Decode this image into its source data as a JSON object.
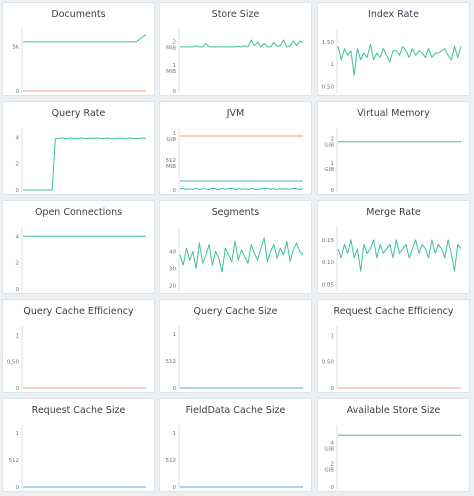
{
  "colors": {
    "background": "#edf0f2",
    "card": "#ffffff",
    "border": "#dde3e6",
    "primary_series": "#3fbf9f",
    "secondary_series": "#e8a07e",
    "tertiary_series": "#5aaed0",
    "axis": "#c9d3d8",
    "label": "#6d7478"
  },
  "panels": [
    {
      "title": "Documents",
      "chart_data": {
        "type": "line",
        "y_ticks": [
          "5k",
          "0"
        ],
        "series": [
          {
            "color": "primary_series",
            "values": [
              5.5,
              5.5,
              5.5,
              5.5,
              5.5,
              5.5,
              5.5,
              5.5,
              5.5,
              5.5,
              5.5,
              5.5,
              5.5,
              5.5,
              5.5,
              5.5,
              5.5,
              5.5,
              5.5,
              5.5,
              5.5,
              5.5,
              5.5,
              5.5,
              5.5,
              5.5,
              5.5,
              5.5,
              5.5,
              5.5,
              5.5,
              5.5,
              5.5,
              5.5,
              5.5,
              5.5,
              5.8,
              6.1,
              6.3
            ]
          },
          {
            "color": "secondary_series",
            "values": [
              0,
              0,
              0,
              0,
              0,
              0,
              0,
              0,
              0,
              0,
              0,
              0,
              0,
              0,
              0,
              0,
              0,
              0,
              0,
              0,
              0,
              0,
              0,
              0,
              0,
              0,
              0,
              0,
              0,
              0,
              0,
              0,
              0,
              0,
              0,
              0,
              0,
              0,
              0
            ]
          }
        ]
      }
    },
    {
      "title": "Store Size",
      "chart_data": {
        "type": "line",
        "y_ticks": [
          "2\nMiB",
          "1\nMiB",
          "0"
        ],
        "series": [
          {
            "color": "primary_series",
            "values": [
              1.9,
              1.9,
              1.9,
              1.9,
              1.9,
              1.95,
              1.9,
              1.9,
              2.05,
              1.9,
              1.9,
              1.9,
              1.9,
              1.9,
              1.9,
              1.9,
              1.9,
              1.9,
              1.92,
              1.9,
              1.95,
              1.9,
              2.2,
              1.95,
              2.1,
              1.9,
              2.05,
              1.9,
              1.9,
              2.1,
              1.92,
              1.95,
              2.2,
              1.9,
              1.95,
              2.15,
              1.95,
              2.15,
              2.1
            ]
          }
        ]
      }
    },
    {
      "title": "Index Rate",
      "chart_data": {
        "type": "line",
        "y_ticks": [
          "1.50",
          "1",
          "0.50"
        ],
        "series": [
          {
            "color": "primary_series",
            "values": [
              1.4,
              1.1,
              1.35,
              1.2,
              1.3,
              0.75,
              1.35,
              1.1,
              1.25,
              1.15,
              1.45,
              1.1,
              1.25,
              1.15,
              1.35,
              1.2,
              1.05,
              1.3,
              1.3,
              1.2,
              1.4,
              1.3,
              1.15,
              1.35,
              1.2,
              1.3,
              1.25,
              1.15,
              1.35,
              1.15,
              1.25,
              1.25,
              1.3,
              1.35,
              1.2,
              1.1,
              1.4,
              1.15,
              1.4
            ]
          }
        ]
      }
    },
    {
      "title": "Query Rate",
      "chart_data": {
        "type": "line",
        "y_ticks": [
          "4",
          "2",
          "0"
        ],
        "series": [
          {
            "color": "primary_series",
            "values": [
              0,
              0,
              0,
              0,
              0,
              0,
              0,
              0,
              0,
              0,
              3.9,
              3.9,
              3.95,
              3.9,
              3.9,
              3.95,
              3.9,
              3.9,
              3.95,
              3.9,
              3.9,
              3.95,
              3.9,
              3.95,
              3.9,
              3.9,
              3.95,
              3.9,
              3.9,
              3.9,
              3.95,
              3.9,
              3.9,
              3.95,
              3.9,
              3.9,
              3.9,
              3.95,
              3.9
            ]
          }
        ]
      }
    },
    {
      "title": "JVM",
      "chart_data": {
        "type": "line",
        "y_ticks": [
          "1\nGiB",
          "512\nMiB",
          "0"
        ],
        "series": [
          {
            "color": "secondary_series",
            "values": [
              1024,
              1024,
              1024,
              1024,
              1024,
              1024,
              1024,
              1024,
              1024,
              1024,
              1024,
              1024,
              1024,
              1024,
              1024,
              1024,
              1024,
              1024,
              1024,
              1024,
              1024,
              1024,
              1024,
              1024,
              1024,
              1024,
              1024,
              1024,
              1024,
              1024,
              1024,
              1024,
              1024,
              1024,
              1024,
              1024,
              1024,
              1024,
              1024
            ]
          },
          {
            "color": "tertiary_series",
            "values": [
              170,
              170,
              170,
              170,
              170,
              170,
              170,
              170,
              170,
              170,
              170,
              170,
              170,
              170,
              170,
              170,
              170,
              170,
              170,
              170,
              170,
              170,
              170,
              170,
              170,
              170,
              170,
              170,
              170,
              170,
              170,
              170,
              170,
              170,
              170,
              170,
              170,
              170,
              170
            ]
          },
          {
            "color": "primary_series",
            "values": [
              20,
              30,
              10,
              25,
              15,
              35,
              5,
              28,
              18,
              12,
              30,
              20,
              8,
              26,
              16,
              22,
              34,
              10,
              28,
              14,
              24,
              6,
              30,
              18,
              12,
              26,
              20,
              32,
              14,
              22,
              8,
              28,
              16,
              24,
              12,
              30,
              20,
              10,
              26
            ]
          }
        ]
      }
    },
    {
      "title": "Virtual Memory",
      "chart_data": {
        "type": "line",
        "y_ticks": [
          "2\nGiB",
          "1\nGiB",
          "0"
        ],
        "series": [
          {
            "color": "primary_series",
            "values": [
              2,
              2,
              2,
              2,
              2,
              2,
              2,
              2,
              2,
              2,
              2,
              2,
              2,
              2,
              2,
              2,
              2,
              2,
              2,
              2,
              2,
              2,
              2,
              2,
              2,
              2,
              2,
              2,
              2,
              2,
              2,
              2,
              2,
              2,
              2,
              2,
              2,
              2,
              2
            ]
          }
        ]
      }
    },
    {
      "title": "Open Connections",
      "chart_data": {
        "type": "line",
        "y_ticks": [
          "4",
          "2",
          "0"
        ],
        "series": [
          {
            "color": "primary_series",
            "values": [
              4,
              4,
              4,
              4,
              4,
              4,
              4,
              4,
              4,
              4,
              4,
              4,
              4,
              4,
              4,
              4,
              4,
              4,
              4,
              4,
              4,
              4,
              4,
              4,
              4,
              4,
              4,
              4,
              4,
              4,
              4,
              4,
              4,
              4,
              4,
              4,
              4,
              4,
              4
            ]
          }
        ]
      }
    },
    {
      "title": "Segments",
      "chart_data": {
        "type": "line",
        "y_ticks": [
          "40",
          "30",
          "20"
        ],
        "series": [
          {
            "color": "primary_series",
            "values": [
              38,
              32,
              42,
              35,
              40,
              30,
              45,
              33,
              38,
              44,
              32,
              40,
              36,
              28,
              42,
              38,
              34,
              46,
              35,
              41,
              37,
              33,
              44,
              39,
              35,
              42,
              48,
              34,
              40,
              44,
              36,
              42,
              38,
              46,
              34,
              41,
              45,
              40,
              38
            ]
          }
        ]
      }
    },
    {
      "title": "Merge Rate",
      "chart_data": {
        "type": "line",
        "y_ticks": [
          "0.15",
          "0.10",
          "0.05"
        ],
        "series": [
          {
            "color": "primary_series",
            "values": [
              0.13,
              0.11,
              0.14,
              0.12,
              0.15,
              0.11,
              0.13,
              0.08,
              0.14,
              0.12,
              0.13,
              0.15,
              0.11,
              0.14,
              0.12,
              0.13,
              0.14,
              0.11,
              0.15,
              0.12,
              0.13,
              0.14,
              0.11,
              0.13,
              0.15,
              0.12,
              0.14,
              0.13,
              0.11,
              0.15,
              0.12,
              0.14,
              0.13,
              0.11,
              0.15,
              0.12,
              0.08,
              0.14,
              0.13
            ]
          }
        ]
      }
    },
    {
      "title": "Query Cache Efficiency",
      "chart_data": {
        "type": "line",
        "y_ticks": [
          "1",
          "0.50",
          "0"
        ],
        "series": [
          {
            "color": "secondary_series",
            "values": [
              0,
              0,
              0,
              0,
              0,
              0,
              0,
              0,
              0,
              0,
              0,
              0,
              0,
              0,
              0,
              0,
              0,
              0,
              0,
              0,
              0,
              0,
              0,
              0,
              0,
              0,
              0,
              0,
              0,
              0,
              0,
              0,
              0,
              0,
              0,
              0,
              0,
              0,
              0
            ]
          }
        ]
      }
    },
    {
      "title": "Query Cache Size",
      "chart_data": {
        "type": "line",
        "y_ticks": [
          "1",
          "512",
          "0"
        ],
        "series": [
          {
            "color": "tertiary_series",
            "values": [
              0,
              0,
              0,
              0,
              0,
              0,
              0,
              0,
              0,
              0,
              0,
              0,
              0,
              0,
              0,
              0,
              0,
              0,
              0,
              0,
              0,
              0,
              0,
              0,
              0,
              0,
              0,
              0,
              0,
              0,
              0,
              0,
              0,
              0,
              0,
              0,
              0,
              0,
              0
            ]
          }
        ]
      }
    },
    {
      "title": "Request Cache Efficiency",
      "chart_data": {
        "type": "line",
        "y_ticks": [
          "1",
          "0.50",
          "0"
        ],
        "series": [
          {
            "color": "secondary_series",
            "values": [
              0,
              0,
              0,
              0,
              0,
              0,
              0,
              0,
              0,
              0,
              0,
              0,
              0,
              0,
              0,
              0,
              0,
              0,
              0,
              0,
              0,
              0,
              0,
              0,
              0,
              0,
              0,
              0,
              0,
              0,
              0,
              0,
              0,
              0,
              0,
              0,
              0,
              0,
              0
            ]
          }
        ]
      }
    },
    {
      "title": "Request Cache Size",
      "chart_data": {
        "type": "line",
        "y_ticks": [
          "1",
          "512",
          "0"
        ],
        "series": [
          {
            "color": "tertiary_series",
            "values": [
              0,
              0,
              0,
              0,
              0,
              0,
              0,
              0,
              0,
              0,
              0,
              0,
              0,
              0,
              0,
              0,
              0,
              0,
              0,
              0,
              0,
              0,
              0,
              0,
              0,
              0,
              0,
              0,
              0,
              0,
              0,
              0,
              0,
              0,
              0,
              0,
              0,
              0,
              0
            ]
          }
        ]
      }
    },
    {
      "title": "FieldData Cache Size",
      "chart_data": {
        "type": "line",
        "y_ticks": [
          "1",
          "512",
          "0"
        ],
        "series": [
          {
            "color": "tertiary_series",
            "values": [
              0,
              0,
              0,
              0,
              0,
              0,
              0,
              0,
              0,
              0,
              0,
              0,
              0,
              0,
              0,
              0,
              0,
              0,
              0,
              0,
              0,
              0,
              0,
              0,
              0,
              0,
              0,
              0,
              0,
              0,
              0,
              0,
              0,
              0,
              0,
              0,
              0,
              0,
              0
            ]
          }
        ]
      }
    },
    {
      "title": "Available Store Size",
      "chart_data": {
        "type": "line",
        "y_ticks": [
          "4\nGiB",
          "2\nGiB",
          "0"
        ],
        "series": [
          {
            "color": "primary_series",
            "values": [
              5,
              5,
              5,
              5,
              5,
              5,
              5,
              5,
              5,
              5,
              5,
              5,
              5,
              5,
              5,
              5,
              5,
              5,
              5,
              5,
              5,
              5,
              5,
              5,
              5,
              5,
              5,
              5,
              5,
              5,
              5,
              5,
              5,
              5,
              5,
              5,
              5,
              5,
              5
            ]
          }
        ]
      }
    }
  ]
}
